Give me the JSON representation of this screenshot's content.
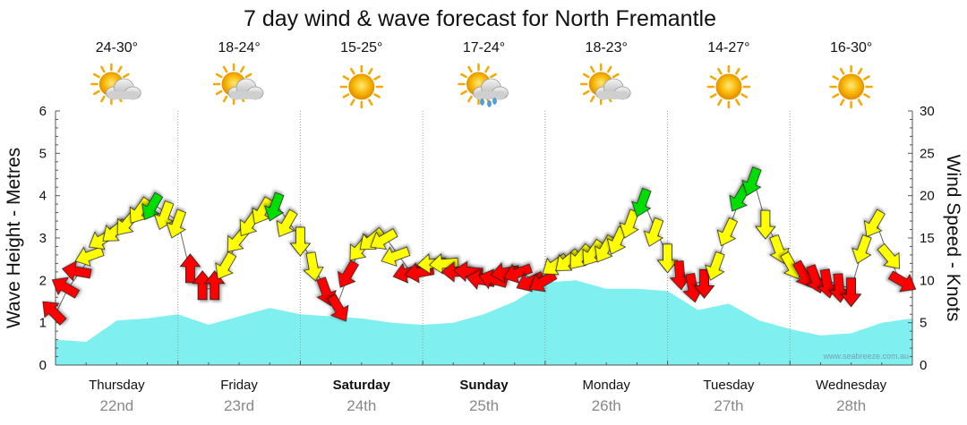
{
  "chart_data": {
    "type": "line",
    "title": "7 day wind & wave forecast for North Fremantle",
    "ylabel_left": "Wave Height - Metres",
    "ylabel_right": "Wind Speed - Knots",
    "ylim_left": [
      0,
      6
    ],
    "ylim_right": [
      0,
      30
    ],
    "yticks_left": [
      "0",
      "1",
      "2",
      "3",
      "4",
      "5",
      "6"
    ],
    "yticks_right": [
      "0",
      "5",
      "10",
      "15",
      "20",
      "25",
      "30"
    ],
    "watermark": "www.seabreeze.com.au",
    "days": [
      {
        "name": "Thursday",
        "date": "22nd",
        "temp": "24-30°",
        "weather": "partly-cloudy",
        "bold": false
      },
      {
        "name": "Friday",
        "date": "23rd",
        "temp": "18-24°",
        "weather": "partly-cloudy",
        "bold": false
      },
      {
        "name": "Saturday",
        "date": "24th",
        "temp": "15-25°",
        "weather": "sunny",
        "bold": true
      },
      {
        "name": "Sunday",
        "date": "25th",
        "temp": "17-24°",
        "weather": "showers",
        "bold": true
      },
      {
        "name": "Monday",
        "date": "26th",
        "temp": "18-23°",
        "weather": "partly-cloudy",
        "bold": false
      },
      {
        "name": "Tuesday",
        "date": "27th",
        "temp": "14-27°",
        "weather": "sunny",
        "bold": false
      },
      {
        "name": "Wednesday",
        "date": "28th",
        "temp": "16-30°",
        "weather": "sunny",
        "bold": false
      }
    ],
    "series": [
      {
        "name": "Wave Height (m)",
        "style": "area",
        "color": "#7fefef",
        "x": [
          0,
          0.25,
          0.5,
          0.75,
          1.0,
          1.25,
          1.5,
          1.75,
          2.0,
          2.25,
          2.5,
          2.75,
          3.0,
          3.25,
          3.5,
          3.75,
          4.0,
          4.25,
          4.5,
          4.75,
          5.0,
          5.25,
          5.5,
          5.75,
          6.0,
          6.25,
          6.5,
          6.75,
          7.0
        ],
        "values": [
          0.6,
          0.55,
          1.05,
          1.1,
          1.2,
          0.95,
          1.15,
          1.35,
          1.2,
          1.15,
          1.1,
          1.0,
          0.95,
          1.0,
          1.2,
          1.5,
          1.95,
          2.0,
          1.8,
          1.8,
          1.75,
          1.3,
          1.45,
          1.05,
          0.85,
          0.7,
          0.75,
          1.0,
          1.1
        ]
      },
      {
        "name": "Wind Speed (knots)",
        "style": "arrows",
        "x": [
          0.0,
          0.1,
          0.2,
          0.3,
          0.4,
          0.5,
          0.6,
          0.7,
          0.8,
          0.9,
          1.0,
          1.1,
          1.2,
          1.3,
          1.4,
          1.5,
          1.6,
          1.7,
          1.8,
          1.9,
          2.0,
          2.1,
          2.2,
          2.3,
          2.4,
          2.5,
          2.6,
          2.7,
          2.8,
          2.9,
          3.0,
          3.1,
          3.2,
          3.3,
          3.4,
          3.5,
          3.6,
          3.7,
          3.8,
          3.9,
          4.0,
          4.1,
          4.2,
          4.3,
          4.4,
          4.5,
          4.6,
          4.7,
          4.8,
          4.9,
          5.0,
          5.1,
          5.2,
          5.3,
          5.4,
          5.5,
          5.6,
          5.7,
          5.8,
          5.9,
          6.0,
          6.1,
          6.2,
          6.3,
          6.4,
          6.5,
          6.6,
          6.7,
          6.8,
          6.9
        ],
        "values": [
          6,
          9,
          11,
          13,
          15,
          16,
          17,
          18.5,
          19,
          18,
          17,
          11,
          9,
          9,
          12,
          15,
          17,
          18.5,
          19,
          17,
          15,
          12,
          9,
          7,
          11,
          14,
          15,
          15,
          13,
          11,
          11,
          12,
          12,
          11,
          11,
          10,
          10,
          11,
          11,
          10,
          10,
          12,
          12.5,
          13,
          13.5,
          14,
          15,
          17,
          19.5,
          16,
          13,
          11,
          9.5,
          10,
          12,
          16,
          20,
          22,
          17,
          14,
          12,
          11,
          10.5,
          10,
          9.5,
          9,
          14,
          17,
          13,
          10
        ],
        "directions": [
          315,
          300,
          280,
          250,
          240,
          230,
          220,
          215,
          210,
          200,
          200,
          0,
          0,
          0,
          210,
          220,
          215,
          210,
          200,
          210,
          180,
          170,
          160,
          150,
          210,
          220,
          230,
          240,
          250,
          255,
          260,
          265,
          265,
          270,
          275,
          280,
          285,
          260,
          250,
          245,
          240,
          235,
          230,
          220,
          215,
          210,
          205,
          200,
          200,
          200,
          180,
          175,
          170,
          180,
          200,
          205,
          210,
          200,
          180,
          160,
          150,
          150,
          160,
          170,
          175,
          180,
          200,
          210,
          140,
          120
        ],
        "colors_by_speed": {
          "under_12": "#ff0000",
          "12_to_19": "#ffff00",
          "19_plus": "#00dd00"
        }
      }
    ]
  }
}
